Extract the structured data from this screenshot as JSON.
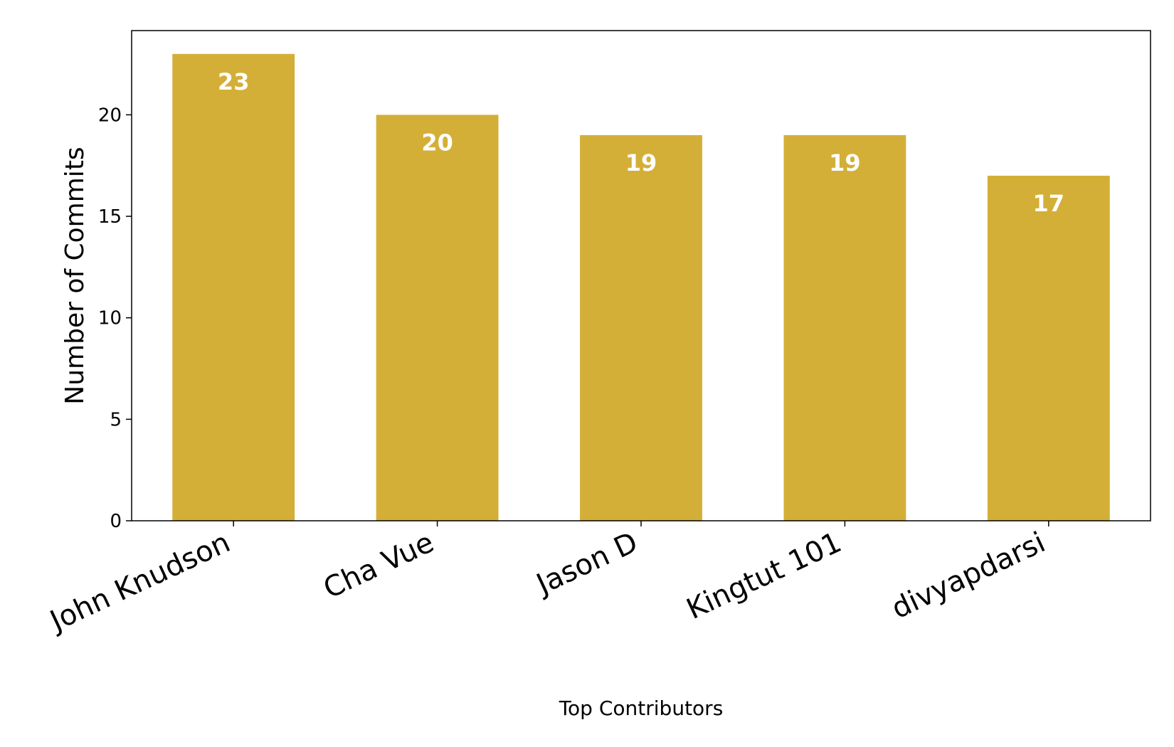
{
  "chart_data": {
    "type": "bar",
    "categories": [
      "John Knudson",
      "Cha Vue",
      "Jason D",
      "Kingtut 101",
      "divyapdarsi"
    ],
    "values": [
      23,
      20,
      19,
      19,
      17
    ],
    "title": "",
    "xlabel": "Top Contributors",
    "ylabel": "Number of Commits",
    "ylim": [
      0,
      24.15
    ],
    "yticks": [
      0,
      5,
      10,
      15,
      20
    ],
    "grid": false,
    "bar_color": "#D4AF37",
    "label_color": "#ffffff",
    "axis_color": "#000000"
  }
}
